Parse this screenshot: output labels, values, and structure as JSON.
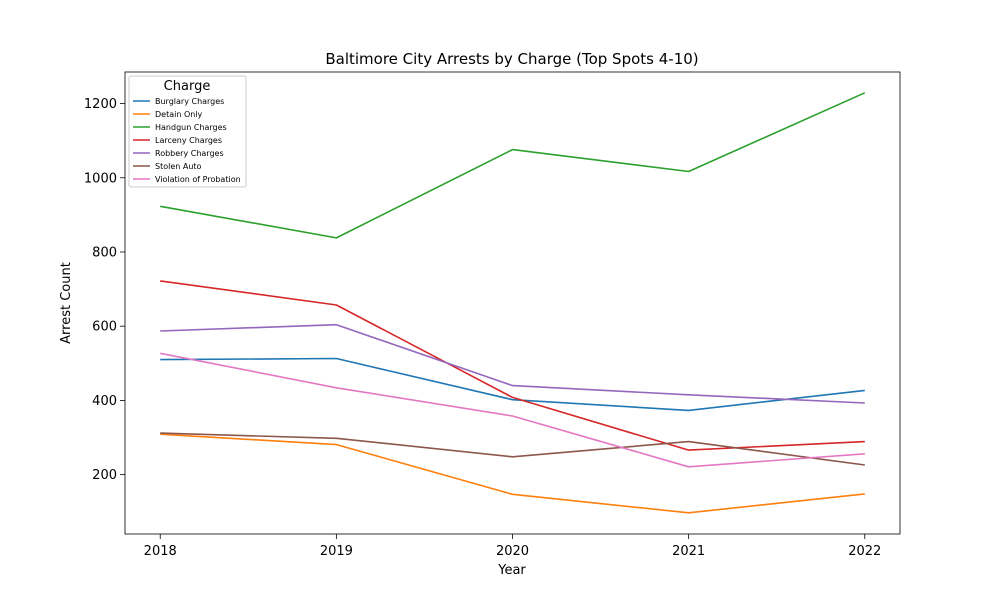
{
  "chart_data": {
    "type": "line",
    "title": "Baltimore City Arrests by Charge (Top Spots 4-10)",
    "xlabel": "Year",
    "ylabel": "Arrest Count",
    "x": [
      2018,
      2019,
      2020,
      2021,
      2022
    ],
    "xlim": [
      2017.8,
      2022.2
    ],
    "ylim": [
      40,
      1285
    ],
    "yticks": [
      200,
      400,
      600,
      800,
      1000,
      1200
    ],
    "grid": false,
    "legend": {
      "title": "Charge",
      "placement": "top-left"
    },
    "series": [
      {
        "name": "Burglary Charges",
        "color": "#1f77b4",
        "values": [
          510,
          513,
          402,
          373,
          427
        ]
      },
      {
        "name": "Detain Only",
        "color": "#ff7f0e",
        "values": [
          309,
          281,
          147,
          97,
          148
        ]
      },
      {
        "name": "Handgun Charges",
        "color": "#2ca02c",
        "values": [
          923,
          838,
          1076,
          1017,
          1229
        ]
      },
      {
        "name": "Larceny Charges",
        "color": "#d62728",
        "values": [
          722,
          657,
          408,
          266,
          289
        ]
      },
      {
        "name": "Robbery Charges",
        "color": "#9467bd",
        "values": [
          587,
          604,
          440,
          415,
          393
        ]
      },
      {
        "name": "Stolen Auto",
        "color": "#8c564b",
        "values": [
          312,
          298,
          248,
          289,
          226
        ]
      },
      {
        "name": "Violation of Probation",
        "color": "#e377c2",
        "values": [
          527,
          434,
          358,
          221,
          256
        ]
      }
    ]
  }
}
